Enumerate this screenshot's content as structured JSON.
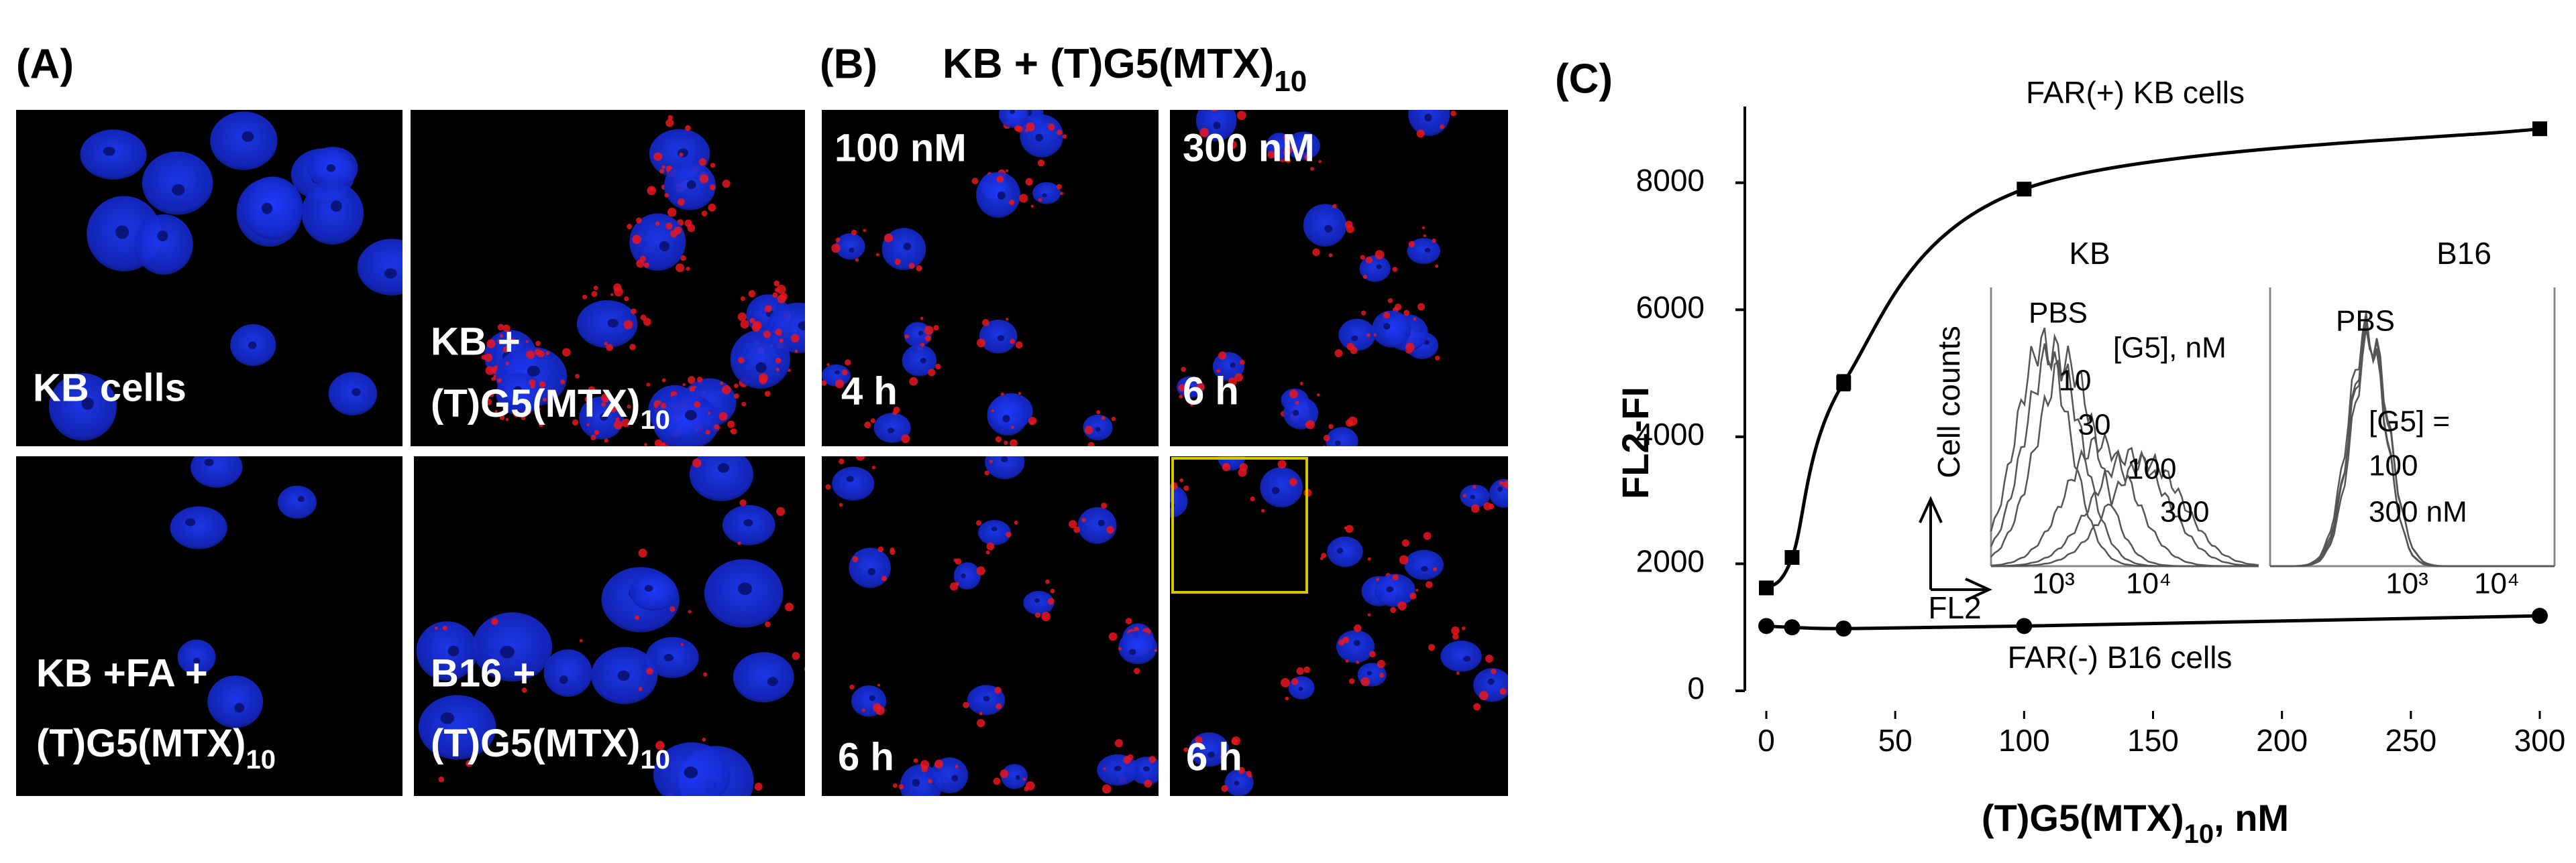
{
  "panels": {
    "A": {
      "label": "(A)",
      "images": [
        [
          "KB cells"
        ],
        [
          "KB +",
          {
            "text": "(T)G5(MTX)",
            "sub": "10"
          }
        ],
        [
          "KB +FA +",
          {
            "text": "(T)G5(MTX)",
            "sub": "10"
          }
        ],
        [
          "B16 +",
          {
            "text": "(T)G5(MTX)",
            "sub": "10"
          }
        ]
      ]
    },
    "B": {
      "label": "(B)",
      "title": {
        "text": "KB + (T)G5(MTX)",
        "sub": "10"
      },
      "images": [
        {
          "dose": "100 nM",
          "time": "4 h"
        },
        {
          "dose": "300 nM",
          "time": "6 h"
        },
        {
          "time": "6 h"
        },
        {
          "time": "6 h"
        }
      ]
    },
    "C": {
      "label": "(C)"
    }
  },
  "chart_data": {
    "type": "line",
    "x_label": {
      "text": "(T)G5(MTX)",
      "sub": "10",
      "after": ", nM"
    },
    "y_label": "FL2-FI",
    "x": [
      0,
      10,
      30,
      100,
      300
    ],
    "series": [
      {
        "name": "FAR(+) KB cells",
        "color": "#000000",
        "marker": "square",
        "values": [
          1620,
          2100,
          4850,
          7900,
          8850
        ],
        "errors": [
          null,
          null,
          120,
          null,
          null
        ]
      },
      {
        "name": "FAR(-) B16 cells",
        "color": "#000000",
        "marker": "circle",
        "values": [
          1020,
          1000,
          980,
          1020,
          1180
        ]
      }
    ],
    "xlim": [
      0,
      300
    ],
    "xticks": [
      0,
      50,
      100,
      150,
      200,
      250,
      300
    ],
    "ylim": [
      0,
      9200
    ],
    "yticks": [
      0,
      2000,
      4000,
      6000,
      8000
    ]
  },
  "insets": {
    "kb": {
      "title": "KB",
      "y_label": "Cell counts",
      "x_label": "FL2",
      "labels": [
        "PBS",
        "[G5], nM",
        "10",
        "30",
        "100",
        "300"
      ],
      "xticks": [
        "10³",
        "10⁴"
      ]
    },
    "b16": {
      "title": "B16",
      "labels": [
        "PBS",
        "[G5] =",
        "100",
        "300 nM"
      ],
      "xticks": [
        "10³",
        "10⁴"
      ]
    }
  }
}
